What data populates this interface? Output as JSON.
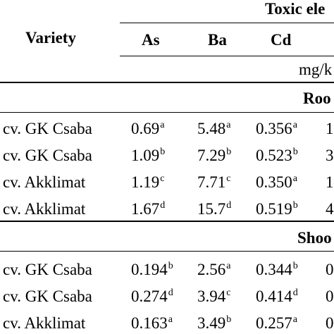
{
  "header": {
    "variety": "Variety",
    "group": "Toxic ele",
    "unit": "mg/k",
    "cols": [
      "As",
      "Ba",
      "Cd"
    ]
  },
  "sections": [
    {
      "label": "Roo",
      "rows": [
        {
          "variety": "cv. GK Csaba",
          "as": "0.69",
          "as_sup": "a",
          "ba": "5.48",
          "ba_sup": "a",
          "cd": "0.356",
          "cd_sup": "a",
          "next": "1"
        },
        {
          "variety": "cv. GK Csaba",
          "as": "1.09",
          "as_sup": "b",
          "ba": "7.29",
          "ba_sup": "b",
          "cd": "0.523",
          "cd_sup": "b",
          "next": "3"
        },
        {
          "variety": "cv. Akklimat",
          "as": "1.19",
          "as_sup": "c",
          "ba": "7.71",
          "ba_sup": "c",
          "cd": "0.350",
          "cd_sup": "a",
          "next": "1"
        },
        {
          "variety": "cv. Akklimat",
          "as": "1.67",
          "as_sup": "d",
          "ba": "15.7",
          "ba_sup": "d",
          "cd": "0.519",
          "cd_sup": "b",
          "next": "4"
        }
      ]
    },
    {
      "label": "Shoo",
      "rows": [
        {
          "variety": "cv. GK Csaba",
          "as": "0.194",
          "as_sup": "b",
          "ba": "2.56",
          "ba_sup": "a",
          "cd": "0.344",
          "cd_sup": "b",
          "next": "0"
        },
        {
          "variety": "cv. GK Csaba",
          "as": "0.274",
          "as_sup": "d",
          "ba": "3.94",
          "ba_sup": "c",
          "cd": "0.414",
          "cd_sup": "d",
          "next": "0"
        },
        {
          "variety": "cv. Akklimat",
          "as": "0.163",
          "as_sup": "a",
          "ba": "3.49",
          "ba_sup": "b",
          "cd": "0.257",
          "cd_sup": "a",
          "next": "0"
        }
      ]
    }
  ]
}
